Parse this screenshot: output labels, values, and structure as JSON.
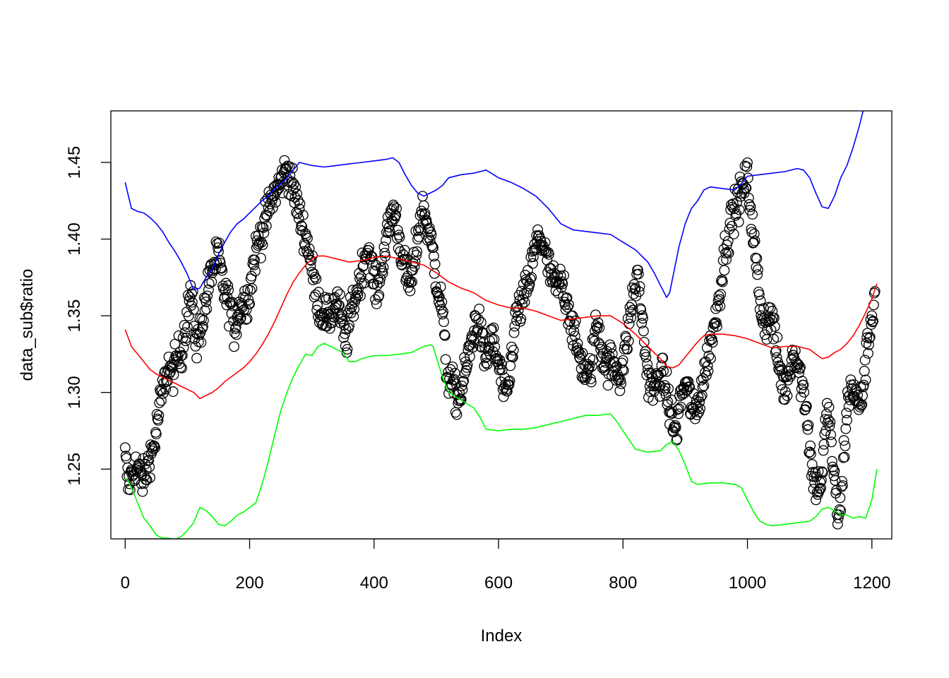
{
  "chart_data": {
    "type": "scatter",
    "xlabel": "Index",
    "ylabel": "data_sub$ratio",
    "xlim": [
      -23,
      1232
    ],
    "ylim": [
      1.2045,
      1.4836
    ],
    "x_ticks": [
      0,
      200,
      400,
      600,
      800,
      1000,
      1200
    ],
    "x_tick_labels": [
      "0",
      "200",
      "400",
      "600",
      "800",
      "1000",
      "1200"
    ],
    "y_ticks": [
      1.25,
      1.3,
      1.35,
      1.4,
      1.45
    ],
    "y_tick_labels": [
      "1.25",
      "1.30",
      "1.35",
      "1.40",
      "1.45"
    ],
    "grid": false,
    "marker": "open-circle",
    "points_anchor_x": [
      0,
      5,
      10,
      15,
      20,
      25,
      30,
      35,
      40,
      45,
      50,
      55,
      60,
      65,
      70,
      75,
      80,
      85,
      90,
      95,
      100,
      105,
      110,
      115,
      120,
      125,
      130,
      135,
      140,
      145,
      150,
      155,
      160,
      165,
      170,
      175,
      180,
      185,
      190,
      195,
      200,
      205,
      210,
      215,
      220,
      225,
      230,
      235,
      240,
      245,
      250,
      255,
      260,
      265,
      270,
      275,
      280,
      285,
      290,
      295,
      300,
      305,
      310,
      315,
      320,
      325,
      330,
      335,
      340,
      345,
      350,
      355,
      360,
      365,
      370,
      375,
      380,
      385,
      390,
      395,
      400,
      405,
      410,
      415,
      420,
      425,
      430,
      435,
      440,
      445,
      450,
      455,
      460,
      465,
      470,
      475,
      480,
      485,
      490,
      495,
      500,
      505,
      510,
      515,
      520,
      525,
      530,
      535,
      540,
      545,
      550,
      555,
      560,
      565,
      570,
      575,
      580,
      585,
      590,
      595,
      600,
      605,
      610,
      615,
      620,
      625,
      630,
      635,
      640,
      645,
      650,
      655,
      660,
      665,
      670,
      675,
      680,
      685,
      690,
      695,
      700,
      705,
      710,
      715,
      720,
      725,
      730,
      735,
      740,
      745,
      750,
      755,
      760,
      765,
      770,
      775,
      780,
      785,
      790,
      795,
      800,
      805,
      810,
      815,
      820,
      825,
      830,
      835,
      840,
      845,
      850,
      855,
      860,
      865,
      870,
      875,
      880,
      885,
      890,
      895,
      900,
      905,
      910,
      915,
      920,
      925,
      930,
      935,
      940,
      945,
      950,
      955,
      960,
      965,
      970,
      975,
      980,
      985,
      990,
      995,
      1000,
      1005,
      1010,
      1015,
      1020,
      1025,
      1030,
      1035,
      1040,
      1045,
      1050,
      1055,
      1060,
      1065,
      1070,
      1075,
      1080,
      1085,
      1090,
      1095,
      1100,
      1105,
      1110,
      1115,
      1120,
      1125,
      1130,
      1135,
      1140,
      1145,
      1150,
      1155,
      1160,
      1165,
      1170,
      1175,
      1180,
      1185,
      1190,
      1195,
      1200,
      1205
    ],
    "points_anchor_y": [
      1.258,
      1.24,
      1.245,
      1.252,
      1.25,
      1.245,
      1.243,
      1.25,
      1.26,
      1.262,
      1.275,
      1.29,
      1.3,
      1.31,
      1.318,
      1.31,
      1.318,
      1.325,
      1.325,
      1.34,
      1.35,
      1.365,
      1.35,
      1.33,
      1.34,
      1.35,
      1.36,
      1.372,
      1.38,
      1.385,
      1.39,
      1.375,
      1.365,
      1.36,
      1.355,
      1.34,
      1.35,
      1.355,
      1.36,
      1.36,
      1.365,
      1.38,
      1.392,
      1.4,
      1.405,
      1.41,
      1.42,
      1.425,
      1.43,
      1.433,
      1.437,
      1.442,
      1.447,
      1.44,
      1.432,
      1.425,
      1.415,
      1.408,
      1.4,
      1.395,
      1.38,
      1.368,
      1.36,
      1.35,
      1.355,
      1.345,
      1.35,
      1.356,
      1.36,
      1.352,
      1.34,
      1.333,
      1.345,
      1.357,
      1.362,
      1.37,
      1.378,
      1.388,
      1.395,
      1.385,
      1.372,
      1.365,
      1.375,
      1.39,
      1.4,
      1.41,
      1.42,
      1.415,
      1.4,
      1.39,
      1.38,
      1.37,
      1.372,
      1.385,
      1.402,
      1.415,
      1.42,
      1.41,
      1.4,
      1.39,
      1.375,
      1.362,
      1.355,
      1.318,
      1.31,
      1.305,
      1.3,
      1.295,
      1.3,
      1.31,
      1.32,
      1.33,
      1.34,
      1.35,
      1.34,
      1.328,
      1.32,
      1.33,
      1.335,
      1.325,
      1.318,
      1.31,
      1.295,
      1.3,
      1.32,
      1.34,
      1.352,
      1.355,
      1.36,
      1.368,
      1.375,
      1.385,
      1.395,
      1.403,
      1.398,
      1.39,
      1.382,
      1.375,
      1.37,
      1.368,
      1.372,
      1.368,
      1.36,
      1.35,
      1.34,
      1.33,
      1.325,
      1.318,
      1.312,
      1.31,
      1.32,
      1.34,
      1.345,
      1.33,
      1.32,
      1.318,
      1.32,
      1.316,
      1.315,
      1.31,
      1.32,
      1.33,
      1.345,
      1.36,
      1.37,
      1.375,
      1.35,
      1.33,
      1.31,
      1.305,
      1.3,
      1.308,
      1.312,
      1.31,
      1.3,
      1.29,
      1.28,
      1.272,
      1.29,
      1.3,
      1.305,
      1.3,
      1.29,
      1.285,
      1.292,
      1.3,
      1.31,
      1.32,
      1.33,
      1.34,
      1.35,
      1.365,
      1.38,
      1.395,
      1.405,
      1.415,
      1.42,
      1.425,
      1.43,
      1.435,
      1.44,
      1.42,
      1.4,
      1.38,
      1.36,
      1.35,
      1.345,
      1.348,
      1.35,
      1.33,
      1.318,
      1.31,
      1.3,
      1.31,
      1.32,
      1.33,
      1.32,
      1.31,
      1.3,
      1.29,
      1.265,
      1.245,
      1.24,
      1.24,
      1.245,
      1.275,
      1.29,
      1.265,
      1.24,
      1.22,
      1.225,
      1.26,
      1.29,
      1.3,
      1.305,
      1.295,
      1.29,
      1.3,
      1.32,
      1.335,
      1.35,
      1.365,
      1.37,
      1.368,
      1.366,
      1.37,
      1.38,
      1.39,
      1.395,
      1.39,
      1.375,
      1.365,
      1.34,
      1.34,
      1.37,
      1.39,
      1.4,
      1.39,
      1.38,
      1.385,
      1.395,
      1.4,
      1.41,
      1.42,
      1.4,
      1.39,
      1.38,
      1.39,
      1.4,
      1.42,
      1.44,
      1.45,
      1.455,
      1.46,
      1.465,
      1.455,
      1.445,
      1.44,
      1.435,
      1.43,
      1.42
    ],
    "points_jitter_sd": 0.006,
    "series": [
      {
        "color": "#0000FF",
        "x": [
          0,
          10,
          20,
          30,
          40,
          50,
          60,
          70,
          80,
          90,
          100,
          110,
          120,
          130,
          140,
          150,
          160,
          170,
          180,
          190,
          200,
          210,
          220,
          230,
          240,
          250,
          260,
          270,
          280,
          290,
          300,
          320,
          340,
          360,
          380,
          400,
          420,
          430,
          440,
          450,
          460,
          470,
          480,
          490,
          500,
          510,
          520,
          540,
          560,
          570,
          580,
          600,
          620,
          640,
          660,
          680,
          700,
          720,
          740,
          760,
          780,
          800,
          820,
          840,
          850,
          860,
          870,
          875,
          880,
          890,
          900,
          910,
          920,
          930,
          940,
          960,
          980,
          990,
          1000,
          1020,
          1040,
          1060,
          1080,
          1090,
          1100,
          1110,
          1120,
          1130,
          1140,
          1150,
          1160,
          1170,
          1180,
          1186
        ],
        "y": [
          1.437,
          1.42,
          1.418,
          1.417,
          1.414,
          1.41,
          1.405,
          1.398,
          1.392,
          1.385,
          1.377,
          1.367,
          1.368,
          1.375,
          1.38,
          1.39,
          1.398,
          1.405,
          1.41,
          1.413,
          1.417,
          1.421,
          1.425,
          1.428,
          1.433,
          1.436,
          1.44,
          1.445,
          1.45,
          1.449,
          1.448,
          1.447,
          1.448,
          1.449,
          1.45,
          1.451,
          1.452,
          1.453,
          1.45,
          1.442,
          1.435,
          1.43,
          1.428,
          1.43,
          1.432,
          1.435,
          1.44,
          1.442,
          1.443,
          1.444,
          1.445,
          1.44,
          1.437,
          1.433,
          1.428,
          1.42,
          1.41,
          1.406,
          1.405,
          1.404,
          1.403,
          1.398,
          1.393,
          1.385,
          1.378,
          1.37,
          1.362,
          1.365,
          1.375,
          1.395,
          1.41,
          1.42,
          1.425,
          1.432,
          1.434,
          1.433,
          1.432,
          1.436,
          1.441,
          1.442,
          1.443,
          1.444,
          1.446,
          1.445,
          1.44,
          1.43,
          1.421,
          1.42,
          1.428,
          1.44,
          1.448,
          1.46,
          1.474,
          1.484
        ]
      },
      {
        "color": "#FF0000",
        "x": [
          0,
          10,
          20,
          30,
          40,
          50,
          60,
          70,
          80,
          90,
          100,
          110,
          120,
          130,
          140,
          150,
          160,
          170,
          180,
          190,
          200,
          210,
          220,
          230,
          240,
          250,
          260,
          270,
          280,
          290,
          300,
          310,
          320,
          340,
          360,
          380,
          400,
          420,
          430,
          440,
          460,
          480,
          500,
          520,
          540,
          560,
          580,
          600,
          620,
          640,
          660,
          680,
          700,
          720,
          740,
          760,
          780,
          800,
          820,
          840,
          860,
          870,
          880,
          890,
          900,
          910,
          920,
          930,
          940,
          960,
          980,
          1000,
          1020,
          1040,
          1060,
          1080,
          1100,
          1110,
          1120,
          1130,
          1140,
          1150,
          1160,
          1170,
          1180,
          1190,
          1200,
          1208
        ],
        "y": [
          1.341,
          1.33,
          1.325,
          1.32,
          1.315,
          1.312,
          1.31,
          1.308,
          1.306,
          1.304,
          1.302,
          1.3,
          1.296,
          1.298,
          1.3,
          1.303,
          1.307,
          1.31,
          1.313,
          1.316,
          1.32,
          1.325,
          1.331,
          1.338,
          1.346,
          1.355,
          1.364,
          1.372,
          1.378,
          1.383,
          1.387,
          1.389,
          1.389,
          1.387,
          1.385,
          1.386,
          1.388,
          1.389,
          1.388,
          1.387,
          1.385,
          1.383,
          1.378,
          1.372,
          1.368,
          1.365,
          1.36,
          1.357,
          1.355,
          1.355,
          1.353,
          1.35,
          1.347,
          1.348,
          1.349,
          1.35,
          1.35,
          1.345,
          1.338,
          1.33,
          1.322,
          1.317,
          1.316,
          1.318,
          1.323,
          1.328,
          1.333,
          1.337,
          1.338,
          1.338,
          1.337,
          1.335,
          1.332,
          1.329,
          1.33,
          1.33,
          1.328,
          1.325,
          1.322,
          1.323,
          1.326,
          1.328,
          1.332,
          1.337,
          1.344,
          1.352,
          1.361,
          1.371
        ]
      },
      {
        "color": "#00FF00",
        "x": [
          0,
          5,
          10,
          20,
          30,
          40,
          50,
          60,
          70,
          80,
          90,
          100,
          110,
          120,
          130,
          140,
          150,
          160,
          170,
          180,
          190,
          200,
          210,
          220,
          230,
          240,
          250,
          260,
          270,
          280,
          290,
          300,
          310,
          320,
          330,
          340,
          350,
          360,
          370,
          380,
          400,
          420,
          440,
          460,
          470,
          480,
          490,
          495,
          500,
          510,
          520,
          540,
          560,
          570,
          580,
          600,
          620,
          640,
          660,
          680,
          700,
          720,
          740,
          760,
          780,
          790,
          800,
          820,
          840,
          860,
          870,
          880,
          890,
          900,
          910,
          920,
          940,
          960,
          980,
          990,
          1000,
          1010,
          1020,
          1030,
          1040,
          1060,
          1080,
          1100,
          1110,
          1120,
          1130,
          1140,
          1150,
          1160,
          1170,
          1180,
          1190,
          1200,
          1208
        ],
        "y": [
          1.244,
          1.242,
          1.238,
          1.228,
          1.218,
          1.213,
          1.207,
          1.205,
          1.205,
          1.204,
          1.206,
          1.21,
          1.215,
          1.225,
          1.223,
          1.219,
          1.214,
          1.213,
          1.216,
          1.22,
          1.222,
          1.225,
          1.228,
          1.24,
          1.255,
          1.272,
          1.288,
          1.3,
          1.31,
          1.318,
          1.325,
          1.324,
          1.33,
          1.332,
          1.33,
          1.328,
          1.326,
          1.32,
          1.32,
          1.322,
          1.324,
          1.324,
          1.325,
          1.326,
          1.328,
          1.33,
          1.331,
          1.33,
          1.323,
          1.31,
          1.3,
          1.295,
          1.29,
          1.284,
          1.276,
          1.275,
          1.276,
          1.276,
          1.277,
          1.279,
          1.281,
          1.283,
          1.285,
          1.285,
          1.286,
          1.281,
          1.275,
          1.263,
          1.261,
          1.262,
          1.266,
          1.268,
          1.262,
          1.253,
          1.242,
          1.24,
          1.241,
          1.241,
          1.24,
          1.238,
          1.23,
          1.222,
          1.216,
          1.214,
          1.213,
          1.214,
          1.215,
          1.216,
          1.219,
          1.224,
          1.225,
          1.223,
          1.22,
          1.22,
          1.218,
          1.219,
          1.218,
          1.23,
          1.25
        ]
      }
    ]
  }
}
